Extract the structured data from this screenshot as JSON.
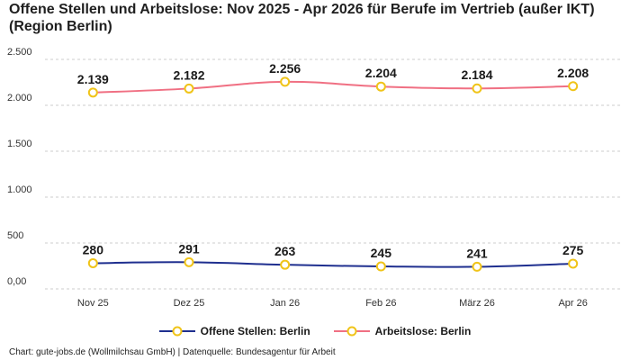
{
  "title": "Offene Stellen und Arbeitslose: Nov 2025 - Apr 2026 für Berufe im Vertrieb (außer IKT) (Region Berlin)",
  "footer": "Chart: gute-jobs.de (Wollmilchsau GmbH) | Datenquelle: Bundesagentur für Arbeit",
  "colors": {
    "offene": "#1f2f8f",
    "arbeitslose": "#f07083",
    "marker_stroke": "#f0c419",
    "grid": "#cccccc"
  },
  "chart_data": {
    "type": "line",
    "categories": [
      "Nov 25",
      "Dez 25",
      "Jan 26",
      "Feb 26",
      "März 26",
      "Apr 26"
    ],
    "series": [
      {
        "name": "Offene Stellen: Berlin",
        "values": [
          280,
          291,
          263,
          245,
          241,
          275
        ],
        "labels": [
          "280",
          "291",
          "263",
          "245",
          "241",
          "275"
        ]
      },
      {
        "name": "Arbeitslose: Berlin",
        "values": [
          2139,
          2182,
          2256,
          2204,
          2184,
          2208
        ],
        "labels": [
          "2.139",
          "2.182",
          "2.256",
          "2.204",
          "2.184",
          "2.208"
        ]
      }
    ],
    "ylim": [
      0,
      2500
    ],
    "yticks": [
      0,
      500,
      1000,
      1500,
      2000,
      2500
    ],
    "ytick_labels": [
      "0,00",
      "500",
      "1.000",
      "1.500",
      "2.000",
      "2.500"
    ],
    "grid": true,
    "legend_position": "bottom"
  }
}
